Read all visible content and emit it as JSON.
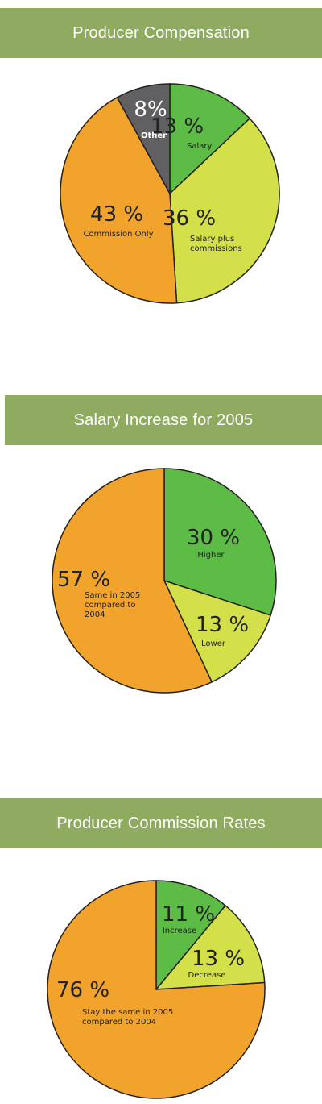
{
  "chart_data": [
    {
      "type": "pie",
      "title": "Producer Compensation",
      "colors": {
        "Salary": "#5cbc45",
        "Salary plus commissions": "#d4e04a",
        "Commission Only": "#f2a32c",
        "Other": "#606062"
      },
      "slices": [
        {
          "value": 13,
          "pct_label": "13 %",
          "label_lines": [
            "Salary"
          ],
          "color": "#5cbc45"
        },
        {
          "value": 36,
          "pct_label": "36 %",
          "label_lines": [
            "Salary plus",
            "commissions"
          ],
          "color": "#d4e04a"
        },
        {
          "value": 43,
          "pct_label": "43 %",
          "label_lines": [
            "Commission Only"
          ],
          "color": "#f2a32c"
        },
        {
          "value": 8,
          "pct_label": "8%",
          "label_lines": [
            "Other"
          ],
          "color": "#606062"
        }
      ]
    },
    {
      "type": "pie",
      "title": "Salary Increase for 2005",
      "slices": [
        {
          "value": 30,
          "pct_label": "30 %",
          "label_lines": [
            "Higher"
          ],
          "color": "#5cbc45"
        },
        {
          "value": 13,
          "pct_label": "13 %",
          "label_lines": [
            "Lower"
          ],
          "color": "#d4e04a"
        },
        {
          "value": 57,
          "pct_label": "57 %",
          "label_lines": [
            "Same in 2005",
            "compared to",
            "2004"
          ],
          "color": "#f2a32c"
        }
      ]
    },
    {
      "type": "pie",
      "title": "Producer Commission Rates",
      "slices": [
        {
          "value": 11,
          "pct_label": "11 %",
          "label_lines": [
            "Increase"
          ],
          "color": "#5cbc45"
        },
        {
          "value": 13,
          "pct_label": "13 %",
          "label_lines": [
            "Decrease"
          ],
          "color": "#d4e04a"
        },
        {
          "value": 76,
          "pct_label": "76 %",
          "label_lines": [
            "Stay the same in 2005",
            "compared to 2004"
          ],
          "color": "#f2a32c"
        }
      ]
    }
  ]
}
